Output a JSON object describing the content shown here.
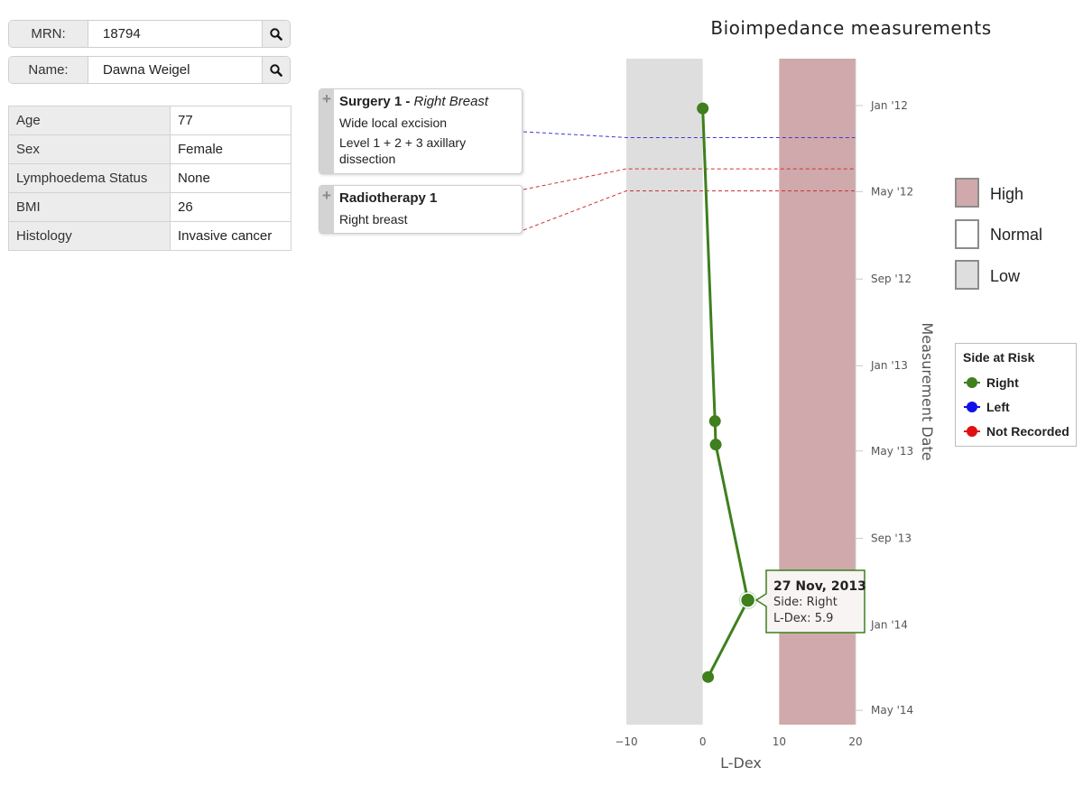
{
  "search": {
    "mrn": {
      "label": "MRN:",
      "value": "18794"
    },
    "name": {
      "label": "Name:",
      "value": "Dawna Weigel"
    }
  },
  "patient_info": [
    {
      "key": "Age",
      "value": "77"
    },
    {
      "key": "Sex",
      "value": "Female"
    },
    {
      "key": "Lymphoedema Status",
      "value": "None"
    },
    {
      "key": "BMI",
      "value": "26"
    },
    {
      "key": "Histology",
      "value": "Invasive cancer"
    }
  ],
  "events": [
    {
      "type": "surgery",
      "title": "Surgery 1",
      "subtitle": "Right Breast",
      "lines": [
        "Wide local excision",
        "Level 1 + 2 + 3 axillary dissection"
      ]
    },
    {
      "type": "radiotherapy",
      "title": "Radiotherapy 1",
      "subtitle": "",
      "lines": [
        "Right breast"
      ]
    }
  ],
  "range_legend": [
    {
      "label": "High",
      "color": "#cfa9ab"
    },
    {
      "label": "Normal",
      "color": "#ffffff"
    },
    {
      "label": "Low",
      "color": "#dedede"
    }
  ],
  "side_legend": {
    "title": "Side at Risk",
    "items": [
      {
        "label": "Right",
        "color": "#3f7f1e"
      },
      {
        "label": "Left",
        "color": "#1010e8"
      },
      {
        "label": "Not Recorded",
        "color": "#e01010"
      }
    ]
  },
  "chart_data": {
    "type": "line",
    "title": "Bioimpedance measurements",
    "xlabel": "L-Dex",
    "ylabel": "Measurement Date",
    "orientation": "vertical-time",
    "xlim": [
      -10,
      20
    ],
    "x_ticks": [
      "-10",
      "0",
      "10",
      "20"
    ],
    "y_ticks": [
      "Jan '12",
      "May '12",
      "Sep '12",
      "Jan '13",
      "May '13",
      "Sep '13",
      "Jan '14",
      "May '14"
    ],
    "bands": [
      {
        "label": "Low",
        "range": [
          -10,
          0
        ],
        "color": "#dedede"
      },
      {
        "label": "High",
        "range": [
          10,
          20
        ],
        "color": "#cfa9ab"
      }
    ],
    "series": [
      {
        "name": "Right",
        "color": "#3f7f1e",
        "points": [
          {
            "date": "2012-01-05",
            "ldex": 0.0
          },
          {
            "date": "2013-03-20",
            "ldex": 1.6
          },
          {
            "date": "2013-04-22",
            "ldex": 1.7
          },
          {
            "date": "2013-11-27",
            "ldex": 5.9
          },
          {
            "date": "2014-03-15",
            "ldex": 0.7
          }
        ]
      }
    ],
    "event_dates": [
      {
        "event": "Surgery 1",
        "date": "2012-02-15",
        "color": "#3b3bd6"
      },
      {
        "event": "Radiotherapy 1",
        "date": "2012-03-30",
        "color": "#cc3333"
      },
      {
        "event": "Radiotherapy 1",
        "date": "2012-04-30",
        "color": "#cc3333"
      }
    ],
    "tooltip": {
      "date": "27 Nov, 2013",
      "side": "Side: Right",
      "ldex": "L-Dex: 5.9"
    }
  }
}
